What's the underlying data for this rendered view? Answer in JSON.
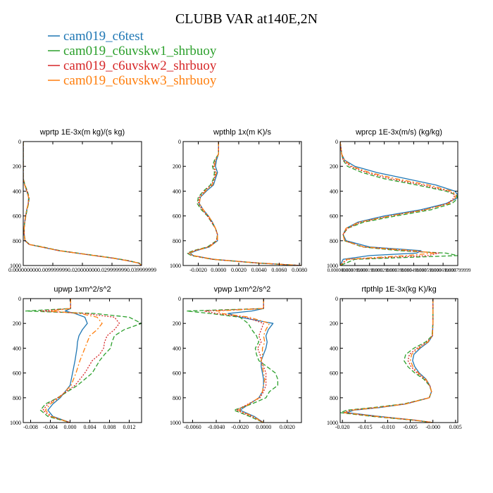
{
  "figure_title": "CLUBB VAR at140E,2N",
  "legend": [
    {
      "name": "cam019_c6test",
      "color": "#1f77b4",
      "dash": "solid"
    },
    {
      "name": "cam019_c6uvskw1_shrbuoy",
      "color": "#2ca02c",
      "dash": "dash"
    },
    {
      "name": "cam019_c6uvskw2_shrbuoy",
      "color": "#d62728",
      "dash": "dot"
    },
    {
      "name": "cam019_c6uvskw3_shrbuoy",
      "color": "#ff7f0e",
      "dash": "dashdot"
    }
  ],
  "chart_data": [
    {
      "type": "line",
      "title": "wprtp  1E-3x(m kg)/(s kg)",
      "xlim": [
        0,
        0.04
      ],
      "ylim": [
        1000,
        0
      ],
      "xticks": [
        "0.000000000",
        "0.009999999",
        "0.020000000",
        "0.029999999",
        "0.039999999"
      ],
      "xtick_values": [
        0,
        0.01,
        0.02,
        0.03,
        0.04
      ],
      "yticks": [
        "0",
        "200",
        "400",
        "600",
        "800",
        "1000"
      ],
      "ytick_values": [
        0,
        200,
        400,
        600,
        800,
        1000
      ],
      "y": [
        0,
        100,
        200,
        300,
        350,
        400,
        450,
        500,
        550,
        600,
        650,
        700,
        750,
        800,
        830,
        850,
        880,
        900,
        920,
        940,
        960,
        980,
        1000
      ],
      "series": [
        {
          "values": [
            0,
            0,
            0,
            0,
            0.0005,
            0.0012,
            0.0018,
            0.0017,
            0.0012,
            0.0008,
            0.0005,
            0.0003,
            0.0003,
            0.0006,
            0.002,
            0.006,
            0.012,
            0.018,
            0.024,
            0.03,
            0.035,
            0.039,
            0.04
          ]
        },
        {
          "values": [
            0,
            0,
            0,
            0,
            0.0006,
            0.0014,
            0.002,
            0.0018,
            0.0013,
            0.0009,
            0.0005,
            0.0003,
            0.0003,
            0.0007,
            0.0022,
            0.0065,
            0.0125,
            0.0185,
            0.0245,
            0.0305,
            0.0355,
            0.0392,
            0.04
          ]
        },
        {
          "values": [
            0,
            0,
            0,
            0,
            0.0005,
            0.0013,
            0.0019,
            0.0017,
            0.0012,
            0.0008,
            0.0005,
            0.0003,
            0.0003,
            0.0006,
            0.0021,
            0.0062,
            0.0122,
            0.0182,
            0.0242,
            0.0302,
            0.0352,
            0.039,
            0.04
          ]
        },
        {
          "values": [
            0,
            0,
            0,
            0,
            0.0005,
            0.0012,
            0.0018,
            0.0017,
            0.0012,
            0.0008,
            0.0005,
            0.0003,
            0.0003,
            0.0006,
            0.002,
            0.006,
            0.012,
            0.018,
            0.024,
            0.03,
            0.035,
            0.039,
            0.04
          ]
        }
      ]
    },
    {
      "type": "line",
      "title": "wpthlp  1x(m K)/s",
      "xlim": [
        -0.0035,
        0.0082
      ],
      "ylim": [
        1000,
        0
      ],
      "xticks": [
        "-0.0020",
        "0.0000",
        "0.0020",
        "0.0040",
        "0.0060",
        "0.0080"
      ],
      "xtick_values": [
        -0.002,
        0,
        0.002,
        0.004,
        0.006,
        0.008
      ],
      "yticks": [
        "0",
        "200",
        "400",
        "600",
        "800",
        "1000"
      ],
      "ytick_values": [
        0,
        200,
        400,
        600,
        800,
        1000
      ],
      "y": [
        0,
        100,
        150,
        200,
        250,
        300,
        350,
        400,
        450,
        500,
        550,
        600,
        650,
        700,
        750,
        800,
        850,
        880,
        900,
        920,
        950,
        980,
        1000
      ],
      "series": [
        {
          "values": [
            0,
            0,
            -0.0002,
            -0.0003,
            -0.0001,
            -0.0003,
            -0.0005,
            -0.0012,
            -0.0018,
            -0.0019,
            -0.0015,
            -0.001,
            -0.0006,
            -0.0003,
            -0.0001,
            -0.0001,
            -0.0009,
            -0.0022,
            -0.0028,
            -0.0025,
            -0.0005,
            0.004,
            0.0082
          ]
        },
        {
          "values": [
            0,
            0,
            -0.0004,
            -0.0006,
            -0.0004,
            -0.0005,
            -0.0008,
            -0.0015,
            -0.002,
            -0.0021,
            -0.0017,
            -0.0011,
            -0.0007,
            -0.0003,
            -0.0001,
            -0.0002,
            -0.0011,
            -0.0025,
            -0.0031,
            -0.0027,
            -0.0006,
            0.0038,
            0.0082
          ]
        },
        {
          "values": [
            0,
            0,
            -0.0003,
            -0.0005,
            -0.0003,
            -0.0004,
            -0.0007,
            -0.0014,
            -0.0019,
            -0.002,
            -0.0016,
            -0.0011,
            -0.0007,
            -0.0003,
            -0.0001,
            -0.0002,
            -0.001,
            -0.0024,
            -0.003,
            -0.0026,
            -0.0006,
            0.0039,
            0.0082
          ]
        },
        {
          "values": [
            0,
            0,
            -0.0003,
            -0.0004,
            -0.0002,
            -0.0004,
            -0.0006,
            -0.0013,
            -0.0018,
            -0.0019,
            -0.0015,
            -0.001,
            -0.0006,
            -0.0003,
            -0.0001,
            -0.0001,
            -0.0009,
            -0.0023,
            -0.0029,
            -0.0025,
            -0.0005,
            0.004,
            0.0082
          ]
        }
      ]
    },
    {
      "type": "line",
      "title": "wprcp  1E-3x(m/s) (kg/kg)",
      "xlim": [
        0,
        0.0008
      ],
      "ylim": [
        1000,
        0
      ],
      "xticks": [
        "0.000000000",
        "0.000099999",
        "0.000199999",
        "0.000299999",
        "0.000399999",
        "0.000499999",
        "0.000599999",
        "0.000699999",
        "0.000799999"
      ],
      "xtick_values": [
        0,
        0.0001,
        0.0002,
        0.0003,
        0.0004,
        0.0005,
        0.0006,
        0.0007,
        0.0008
      ],
      "xtick_labels_overlapping": true,
      "yticks": [
        "0",
        "200",
        "400",
        "600",
        "800",
        "1000"
      ],
      "ytick_values": [
        0,
        200,
        400,
        600,
        800,
        1000
      ],
      "y": [
        0,
        100,
        150,
        200,
        250,
        300,
        350,
        400,
        430,
        460,
        500,
        550,
        600,
        650,
        700,
        750,
        800,
        850,
        880,
        900,
        920,
        950,
        1000
      ],
      "series": [
        {
          "values": [
            0,
            1e-05,
            3e-05,
            0.0001,
            0.00025,
            0.00045,
            0.00065,
            0.00078,
            0.0008,
            0.00079,
            0.00072,
            0.00055,
            0.0003,
            0.00012,
            4e-05,
            2e-05,
            4e-05,
            0.0002,
            0.00055,
            0.00052,
            0.0002,
            2e-05,
            0
          ]
        },
        {
          "values": [
            0,
            1e-05,
            2e-05,
            5e-05,
            0.00015,
            0.0003,
            0.00052,
            0.00072,
            0.00079,
            0.0008,
            0.00076,
            0.00062,
            0.00038,
            0.00016,
            5e-05,
            2e-05,
            3e-05,
            0.00015,
            0.0004,
            0.00072,
            0.0008,
            0.0001,
            0
          ]
        },
        {
          "values": [
            0,
            1e-05,
            2e-05,
            7e-05,
            0.00018,
            0.00034,
            0.00056,
            0.00074,
            0.00078,
            0.00077,
            0.00073,
            0.00058,
            0.00034,
            0.00014,
            5e-05,
            2e-05,
            3e-05,
            0.00016,
            0.00045,
            0.00067,
            0.0006,
            5e-05,
            0
          ]
        },
        {
          "values": [
            0,
            1e-05,
            3e-05,
            8e-05,
            0.0002,
            0.00038,
            0.0006,
            0.00076,
            0.00079,
            0.00078,
            0.00074,
            0.00058,
            0.00034,
            0.00013,
            4e-05,
            2e-05,
            3e-05,
            0.00016,
            0.0005,
            0.00064,
            0.00045,
            4e-05,
            0
          ]
        }
      ]
    },
    {
      "type": "line",
      "title": "upwp  1xm^2/s^2",
      "xlim": [
        -0.0095,
        0.0145
      ],
      "ylim": [
        1000,
        0
      ],
      "xticks": [
        "-0.008",
        "-0.004",
        "0.000",
        "0.004",
        "0.008",
        "0.012"
      ],
      "xtick_values": [
        -0.008,
        -0.004,
        0,
        0.004,
        0.008,
        0.012
      ],
      "yticks": [
        "0",
        "200",
        "400",
        "600",
        "800",
        "1000"
      ],
      "ytick_values": [
        0,
        200,
        400,
        600,
        800,
        1000
      ],
      "y": [
        0,
        80,
        100,
        120,
        150,
        200,
        250,
        300,
        350,
        400,
        450,
        500,
        600,
        700,
        800,
        850,
        900,
        950,
        1000
      ],
      "series": [
        {
          "values": [
            0.0001,
            0.0001,
            -0.001,
            0.001,
            0.003,
            0.0035,
            0.0025,
            0.0018,
            0.0015,
            0.0014,
            0.0012,
            0.001,
            0.0005,
            0,
            -0.002,
            -0.0035,
            -0.0045,
            -0.0035,
            0
          ]
        },
        {
          "values": [
            0.0001,
            0.0001,
            -0.009,
            0.005,
            0.012,
            0.0145,
            0.011,
            0.009,
            0.0085,
            0.0082,
            0.007,
            0.006,
            0.0045,
            0.0015,
            -0.0025,
            -0.005,
            -0.006,
            -0.0045,
            0
          ]
        },
        {
          "values": [
            0.0001,
            0.0001,
            -0.006,
            0.003,
            0.009,
            0.01,
            0.009,
            0.0075,
            0.007,
            0.0068,
            0.006,
            0.0045,
            0.003,
            0.001,
            -0.0025,
            -0.0045,
            -0.0055,
            -0.004,
            0
          ]
        },
        {
          "values": [
            0.0001,
            0.0001,
            -0.004,
            0.002,
            0.0055,
            0.0065,
            0.0055,
            0.004,
            0.0035,
            0.003,
            0.0025,
            0.002,
            0.0012,
            0.0002,
            -0.0022,
            -0.004,
            -0.005,
            -0.0038,
            0
          ]
        }
      ]
    },
    {
      "type": "line",
      "title": "vpwp  1xm^2/s^2",
      "xlim": [
        -0.0068,
        0.0032
      ],
      "ylim": [
        1000,
        0
      ],
      "xticks": [
        "-0.0060",
        "-0.0040",
        "-0.0020",
        "0.0000",
        "0.0020"
      ],
      "xtick_values": [
        -0.006,
        -0.004,
        -0.002,
        0,
        0.002
      ],
      "yticks": [
        "0",
        "200",
        "400",
        "600",
        "800",
        "1000"
      ],
      "ytick_values": [
        0,
        200,
        400,
        600,
        800,
        1000
      ],
      "y": [
        0,
        80,
        100,
        120,
        150,
        200,
        250,
        300,
        350,
        400,
        450,
        500,
        550,
        600,
        650,
        700,
        750,
        800,
        850,
        900,
        950,
        1000
      ],
      "series": [
        {
          "values": [
            0,
            0,
            -0.001,
            -0.003,
            -0.002,
            0.0008,
            0.0004,
            0.0002,
            0.0003,
            0.0002,
            0,
            -0.0002,
            -0.0002,
            -0.0001,
            0,
            0,
            -0.0001,
            -0.0004,
            -0.0012,
            -0.002,
            -0.0008,
            0
          ]
        },
        {
          "values": [
            0,
            0,
            -0.0065,
            -0.0045,
            -0.002,
            -0.0013,
            -0.001,
            -0.0006,
            -0.0004,
            -0.0007,
            -0.0006,
            -0.0004,
            0.0003,
            0.001,
            0.0012,
            0.0012,
            0.0005,
            0.0002,
            -0.001,
            -0.0025,
            -0.0012,
            0
          ]
        },
        {
          "values": [
            0,
            0,
            -0.005,
            -0.004,
            -0.0015,
            0,
            -0.0002,
            -0.0004,
            -0.0002,
            -0.0005,
            -0.0003,
            -0.0002,
            0,
            0.0002,
            0.0002,
            0.0002,
            0,
            -0.0003,
            -0.0013,
            -0.0023,
            -0.001,
            0
          ]
        },
        {
          "values": [
            0,
            0,
            -0.004,
            -0.0035,
            -0.0012,
            0.0005,
            0.0002,
            0,
            0.0001,
            -0.0001,
            -0.0001,
            -0.0002,
            -0.0001,
            0,
            0.0001,
            0,
            -0.0001,
            -0.0004,
            -0.0012,
            -0.0021,
            -0.0009,
            0
          ]
        }
      ]
    },
    {
      "type": "line",
      "title": "rtpthlp  1E-3x(kg K)/kg",
      "xlim": [
        -0.0205,
        0.0055
      ],
      "ylim": [
        1000,
        0
      ],
      "xticks": [
        "-0.020",
        "-0.015",
        "-0.010",
        "-0.005",
        "-0.000",
        "0.005"
      ],
      "xtick_values": [
        -0.02,
        -0.015,
        -0.01,
        -0.005,
        0,
        0.005
      ],
      "yticks": [
        "0",
        "200",
        "400",
        "600",
        "800",
        "1000"
      ],
      "ytick_values": [
        0,
        200,
        400,
        600,
        800,
        1000
      ],
      "y": [
        0,
        100,
        200,
        300,
        350,
        400,
        450,
        500,
        550,
        600,
        650,
        700,
        750,
        800,
        850,
        880,
        900,
        920,
        950,
        980,
        1000
      ],
      "series": [
        {
          "values": [
            0,
            0,
            0,
            -0.0001,
            -0.001,
            -0.0028,
            -0.0042,
            -0.0045,
            -0.004,
            -0.003,
            -0.0015,
            -0.0007,
            -0.0003,
            -0.0008,
            -0.006,
            -0.012,
            -0.0175,
            -0.019,
            -0.012,
            -0.004,
            0
          ]
        },
        {
          "values": [
            0,
            0,
            0,
            -0.0002,
            -0.0016,
            -0.0042,
            -0.006,
            -0.0064,
            -0.0055,
            -0.004,
            -0.002,
            -0.0008,
            -0.0003,
            -0.0008,
            -0.0065,
            -0.0135,
            -0.019,
            -0.0205,
            -0.0135,
            -0.0045,
            0
          ]
        },
        {
          "values": [
            0,
            0,
            0,
            -0.0001,
            -0.0013,
            -0.0035,
            -0.0052,
            -0.0055,
            -0.0048,
            -0.0035,
            -0.0018,
            -0.0007,
            -0.0003,
            -0.0008,
            -0.0062,
            -0.0128,
            -0.0182,
            -0.0198,
            -0.0128,
            -0.0042,
            0
          ]
        },
        {
          "values": [
            0,
            0,
            0,
            -0.0001,
            -0.0011,
            -0.0031,
            -0.0047,
            -0.005,
            -0.0044,
            -0.0032,
            -0.0016,
            -0.0007,
            -0.0003,
            -0.0008,
            -0.006,
            -0.0125,
            -0.0178,
            -0.0195,
            -0.0125,
            -0.0041,
            0
          ]
        }
      ]
    }
  ]
}
